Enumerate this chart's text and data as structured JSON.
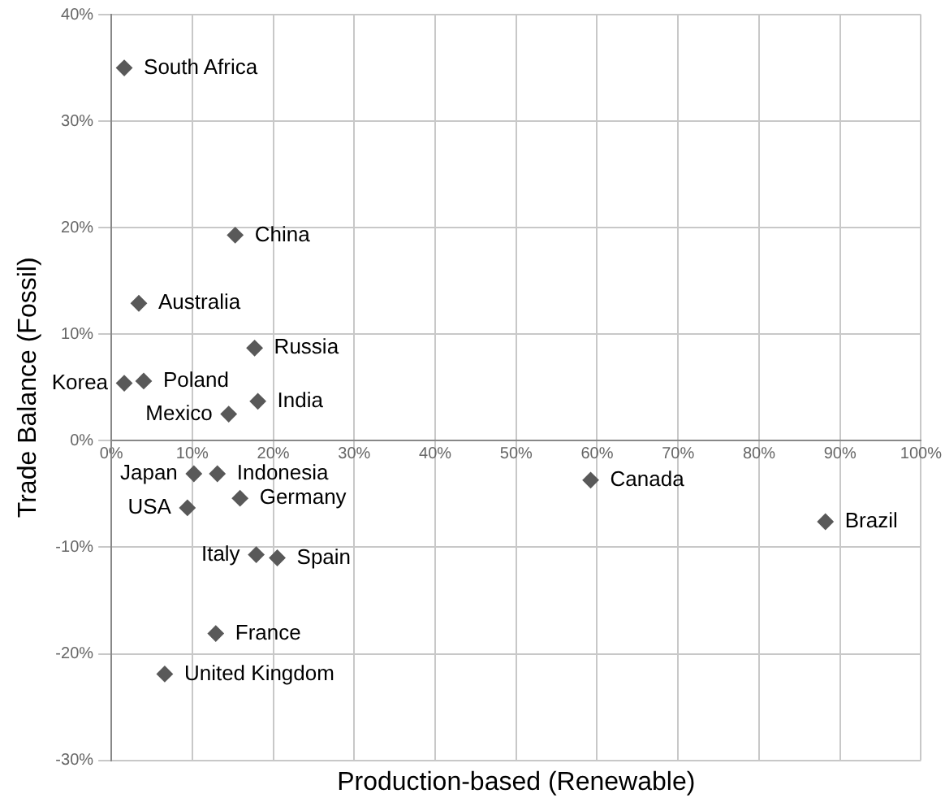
{
  "chart_data": {
    "type": "scatter",
    "xlabel": "Production-based (Renewable)",
    "ylabel": "Trade Balance (Fossil)",
    "x": [
      1.6,
      15.3,
      3.4,
      17.7,
      18.1,
      14.5,
      4,
      1.6,
      10.2,
      13.1,
      9.4,
      15.9,
      59.2,
      88.2,
      17.9,
      20.5,
      12.9,
      6.6
    ],
    "values": [
      35,
      19.3,
      12.9,
      8.7,
      3.7,
      2.5,
      5.6,
      5.4,
      -3.1,
      -3.1,
      -6.3,
      -5.4,
      -3.7,
      -7.6,
      -10.7,
      -11,
      -18.1,
      -21.9
    ],
    "color": "#595959",
    "marker": "diamond",
    "grid": true,
    "legend": false,
    "xlim": [
      0,
      100
    ],
    "ylim": [
      -30,
      40
    ],
    "xticks": [
      {
        "value": 0,
        "label": "0%"
      },
      {
        "value": 10,
        "label": "10%"
      },
      {
        "value": 20,
        "label": "20%"
      },
      {
        "value": 30,
        "label": "30%"
      },
      {
        "value": 40,
        "label": "40%"
      },
      {
        "value": 50,
        "label": "50%"
      },
      {
        "value": 60,
        "label": "60%"
      },
      {
        "value": 70,
        "label": "70%"
      },
      {
        "value": 80,
        "label": "80%"
      },
      {
        "value": 90,
        "label": "90%"
      },
      {
        "value": 100,
        "label": "100%"
      }
    ],
    "yticks": [
      {
        "value": -30,
        "label": "-30%"
      },
      {
        "value": -20,
        "label": "-20%"
      },
      {
        "value": -10,
        "label": "-10%"
      },
      {
        "value": 0,
        "label": "0%"
      },
      {
        "value": 10,
        "label": "10%"
      },
      {
        "value": 20,
        "label": "20%"
      },
      {
        "value": 30,
        "label": "30%"
      },
      {
        "value": 40,
        "label": "40%"
      }
    ],
    "annotations": [
      {
        "text": "South Africa",
        "x": 1.6,
        "y": 35
      },
      {
        "text": "China",
        "x": 15.3,
        "y": 19.3
      },
      {
        "text": "Australia",
        "x": 3.4,
        "y": 12.9
      },
      {
        "text": "Russia",
        "x": 17.7,
        "y": 8.7
      },
      {
        "text": "India",
        "x": 18.1,
        "y": 3.7
      },
      {
        "text": "Mexico",
        "x": 14.5,
        "y": 2.5
      },
      {
        "text": "Poland",
        "x": 4,
        "y": 5.6
      },
      {
        "text": "Korea",
        "x": 1.6,
        "y": 5.4
      },
      {
        "text": "Japan",
        "x": 10.2,
        "y": -3.1
      },
      {
        "text": "Indonesia",
        "x": 13.1,
        "y": -3.1
      },
      {
        "text": "USA",
        "x": 9.4,
        "y": -6.3
      },
      {
        "text": "Germany",
        "x": 15.9,
        "y": -5.4
      },
      {
        "text": "Canada",
        "x": 59.2,
        "y": -3.7
      },
      {
        "text": "Brazil",
        "x": 88.2,
        "y": -7.6
      },
      {
        "text": "Italy",
        "x": 17.9,
        "y": -10.7
      },
      {
        "text": "Spain",
        "x": 20.5,
        "y": -11
      },
      {
        "text": "France",
        "x": 12.9,
        "y": -18.1
      },
      {
        "text": "United Kingdom",
        "x": 6.6,
        "y": -21.9
      }
    ]
  }
}
